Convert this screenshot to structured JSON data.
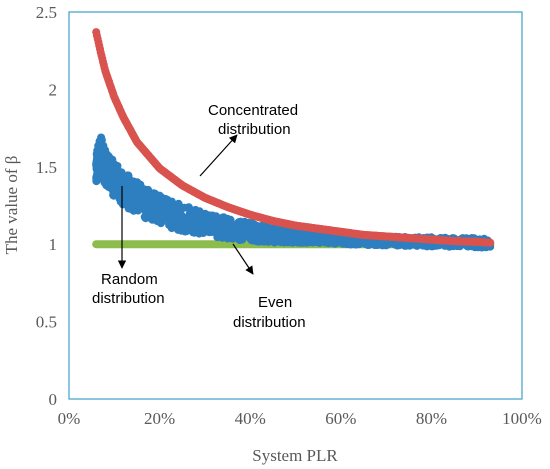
{
  "chart_data": {
    "type": "scatter",
    "xlabel": "System PLR",
    "ylabel": "The value of β",
    "xlim": [
      0,
      1
    ],
    "ylim": [
      0,
      2.5
    ],
    "x_ticks": [
      "0%",
      "20%",
      "40%",
      "60%",
      "80%",
      "100%"
    ],
    "y_ticks": [
      "0",
      "0.5",
      "1",
      "1.5",
      "2",
      "2.5"
    ],
    "grid": false,
    "series": [
      {
        "name": "Concentrated distribution",
        "color": "#d9534f",
        "points": [
          [
            0.06,
            2.37
          ],
          [
            0.07,
            2.24
          ],
          [
            0.08,
            2.12
          ],
          [
            0.1,
            1.95
          ],
          [
            0.12,
            1.82
          ],
          [
            0.15,
            1.66
          ],
          [
            0.2,
            1.49
          ],
          [
            0.25,
            1.38
          ],
          [
            0.3,
            1.3
          ],
          [
            0.35,
            1.24
          ],
          [
            0.4,
            1.19
          ],
          [
            0.45,
            1.15
          ],
          [
            0.5,
            1.12
          ],
          [
            0.55,
            1.1
          ],
          [
            0.6,
            1.08
          ],
          [
            0.65,
            1.06
          ],
          [
            0.7,
            1.05
          ],
          [
            0.75,
            1.04
          ],
          [
            0.8,
            1.03
          ],
          [
            0.85,
            1.02
          ],
          [
            0.9,
            1.015
          ],
          [
            0.93,
            1.01
          ]
        ]
      },
      {
        "name": "Random distribution",
        "color": "#2e7fc0",
        "points": [
          [
            0.06,
            1.52
          ],
          [
            0.07,
            1.58
          ],
          [
            0.08,
            1.5
          ],
          [
            0.09,
            1.46
          ],
          [
            0.1,
            1.42
          ],
          [
            0.12,
            1.36
          ],
          [
            0.15,
            1.3
          ],
          [
            0.18,
            1.25
          ],
          [
            0.2,
            1.22
          ],
          [
            0.25,
            1.17
          ],
          [
            0.3,
            1.13
          ],
          [
            0.35,
            1.1
          ],
          [
            0.4,
            1.08
          ],
          [
            0.45,
            1.06
          ],
          [
            0.5,
            1.05
          ],
          [
            0.55,
            1.04
          ],
          [
            0.6,
            1.03
          ],
          [
            0.7,
            1.02
          ],
          [
            0.8,
            1.015
          ],
          [
            0.9,
            1.01
          ],
          [
            0.93,
            1.005
          ]
        ]
      },
      {
        "name": "Even distribution",
        "color": "#8cbd4c",
        "points": [
          [
            0.06,
            1.0
          ],
          [
            0.2,
            1.0
          ],
          [
            0.4,
            1.0
          ],
          [
            0.6,
            1.0
          ],
          [
            0.8,
            1.0
          ],
          [
            0.93,
            1.0
          ]
        ]
      }
    ],
    "annotations": [
      {
        "lines": [
          "Concentrated",
          "distribution"
        ]
      },
      {
        "lines": [
          "Random",
          "distribution"
        ]
      },
      {
        "lines": [
          "Even",
          "distribution"
        ]
      }
    ]
  }
}
